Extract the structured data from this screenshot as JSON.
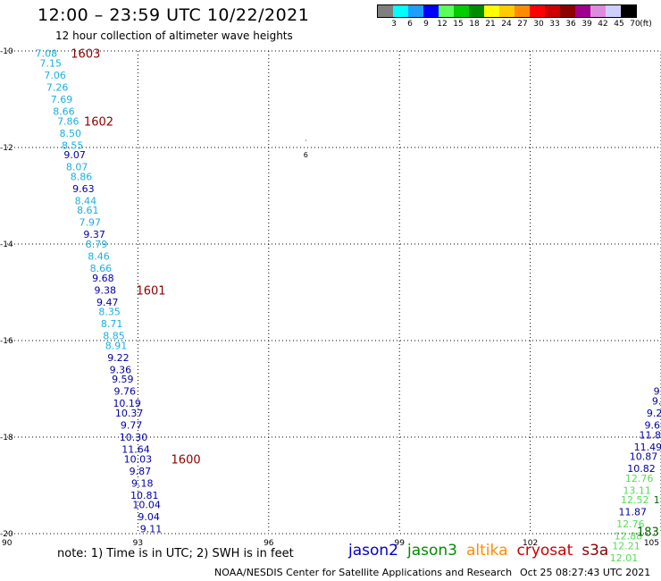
{
  "header": {
    "title": "12:00 – 23:59 UTC 10/22/2021",
    "subtitle": "12 hour collection of altimeter wave heights"
  },
  "color_scale": {
    "colors": [
      "#7f7f7f",
      "#00ffff",
      "#1e9fff",
      "#0000ff",
      "#5aff5a",
      "#00cc00",
      "#008c00",
      "#ffff00",
      "#ffcc00",
      "#ff8c00",
      "#ff0000",
      "#cc0000",
      "#8c0000",
      "#a0008c",
      "#dc8cdc",
      "#cfcfff",
      "#000000"
    ],
    "labels": [
      "3",
      "6",
      "9",
      "12",
      "15",
      "18",
      "21",
      "24",
      "27",
      "30",
      "33",
      "36",
      "39",
      "42",
      "45",
      "70",
      "(ft)"
    ]
  },
  "footer": {
    "note": "note:  1) Time is in UTC;  2) SWH is in feet",
    "credit_left": "NOAA/NESDIS Center for Satellite Applications and Research",
    "credit_right": "Oct 25 08:27:43 UTC 2021"
  },
  "legend": [
    {
      "name": "jason2",
      "color": "#0000cc"
    },
    {
      "name": "jason3",
      "color": "#008c00"
    },
    {
      "name": "altika",
      "color": "#ff8c00"
    },
    {
      "name": "cryosat",
      "color": "#cc0000"
    },
    {
      "name": "s3a",
      "color": "#8c0000"
    }
  ],
  "chart_data": {
    "type": "scatter",
    "xlim": [
      90,
      105
    ],
    "ylim": [
      -20,
      -10
    ],
    "xticks": [
      90,
      93,
      96,
      99,
      102,
      105
    ],
    "yticks": [
      -10,
      -12,
      -14,
      -16,
      -18,
      -20
    ],
    "grid": true,
    "colors": {
      "cyan": "#1ab0e0",
      "blue": "#0000aa",
      "lightgreen": "#55dd55",
      "green": "#006600",
      "dark": "#8c0000"
    },
    "points": [
      {
        "x": 90.9,
        "y": -10.05,
        "label": "7.08",
        "c": "cyan"
      },
      {
        "x": 91.0,
        "y": -10.25,
        "label": "7.15",
        "c": "cyan"
      },
      {
        "x": 91.1,
        "y": -10.5,
        "label": "7.06",
        "c": "cyan"
      },
      {
        "x": 91.15,
        "y": -10.75,
        "label": "7.26",
        "c": "cyan"
      },
      {
        "x": 91.25,
        "y": -11.0,
        "label": "7.69",
        "c": "cyan"
      },
      {
        "x": 91.3,
        "y": -11.25,
        "label": "8.66",
        "c": "cyan"
      },
      {
        "x": 91.4,
        "y": -11.45,
        "label": "7.86",
        "c": "cyan"
      },
      {
        "x": 91.45,
        "y": -11.7,
        "label": "8.50",
        "c": "cyan"
      },
      {
        "x": 91.5,
        "y": -11.95,
        "label": "8.55",
        "c": "cyan"
      },
      {
        "x": 91.55,
        "y": -12.15,
        "label": "9.07",
        "c": "blue"
      },
      {
        "x": 91.6,
        "y": -12.4,
        "label": "8.07",
        "c": "cyan"
      },
      {
        "x": 91.7,
        "y": -12.6,
        "label": "8.86",
        "c": "cyan"
      },
      {
        "x": 91.75,
        "y": -12.85,
        "label": "9.63",
        "c": "blue"
      },
      {
        "x": 91.8,
        "y": -13.1,
        "label": "8.44",
        "c": "cyan"
      },
      {
        "x": 91.85,
        "y": -13.3,
        "label": "8.61",
        "c": "cyan"
      },
      {
        "x": 91.9,
        "y": -13.55,
        "label": "7.97",
        "c": "cyan"
      },
      {
        "x": 92.0,
        "y": -13.8,
        "label": "9.37",
        "c": "blue"
      },
      {
        "x": 92.05,
        "y": -14.0,
        "label": "8.79",
        "c": "cyan"
      },
      {
        "x": 92.1,
        "y": -14.25,
        "label": "8.46",
        "c": "cyan"
      },
      {
        "x": 92.15,
        "y": -14.5,
        "label": "8.66",
        "c": "cyan"
      },
      {
        "x": 92.2,
        "y": -14.7,
        "label": "9.68",
        "c": "blue"
      },
      {
        "x": 92.25,
        "y": -14.95,
        "label": "9.38",
        "c": "blue"
      },
      {
        "x": 92.3,
        "y": -15.2,
        "label": "9.47",
        "c": "blue"
      },
      {
        "x": 92.35,
        "y": -15.4,
        "label": "8.35",
        "c": "cyan"
      },
      {
        "x": 92.4,
        "y": -15.65,
        "label": "8.71",
        "c": "cyan"
      },
      {
        "x": 92.45,
        "y": -15.9,
        "label": "8.85",
        "c": "cyan"
      },
      {
        "x": 92.5,
        "y": -16.1,
        "label": "8.91",
        "c": "cyan"
      },
      {
        "x": 92.55,
        "y": -16.35,
        "label": "9.22",
        "c": "blue"
      },
      {
        "x": 92.6,
        "y": -16.6,
        "label": "9.36",
        "c": "blue"
      },
      {
        "x": 92.65,
        "y": -16.8,
        "label": "9.59",
        "c": "blue"
      },
      {
        "x": 92.7,
        "y": -17.05,
        "label": "9.76",
        "c": "blue"
      },
      {
        "x": 92.75,
        "y": -17.3,
        "label": "10.19",
        "c": "blue"
      },
      {
        "x": 92.8,
        "y": -17.5,
        "label": "10.37",
        "c": "blue"
      },
      {
        "x": 92.85,
        "y": -17.75,
        "label": "9.77",
        "c": "blue"
      },
      {
        "x": 92.9,
        "y": -18.0,
        "label": "10.30",
        "c": "blue"
      },
      {
        "x": 92.95,
        "y": -18.25,
        "label": "11.64",
        "c": "blue"
      },
      {
        "x": 93.0,
        "y": -18.45,
        "label": "10.03",
        "c": "blue"
      },
      {
        "x": 93.05,
        "y": -18.7,
        "label": "9.87",
        "c": "blue"
      },
      {
        "x": 93.1,
        "y": -18.95,
        "label": "9.18",
        "c": "blue"
      },
      {
        "x": 93.15,
        "y": -19.2,
        "label": "10.81",
        "c": "blue"
      },
      {
        "x": 93.2,
        "y": -19.4,
        "label": "10.04",
        "c": "blue"
      },
      {
        "x": 93.25,
        "y": -19.65,
        "label": "9.04",
        "c": "blue"
      },
      {
        "x": 93.3,
        "y": -19.9,
        "label": "9.11",
        "c": "blue"
      },
      {
        "x": 104.9,
        "y": -17.05,
        "label": "9",
        "c": "blue"
      },
      {
        "x": 104.9,
        "y": -17.25,
        "label": "9.",
        "c": "blue"
      },
      {
        "x": 104.85,
        "y": -17.5,
        "label": "9.2",
        "c": "blue"
      },
      {
        "x": 104.8,
        "y": -17.75,
        "label": "9.6",
        "c": "blue"
      },
      {
        "x": 104.75,
        "y": -17.95,
        "label": "11.8",
        "c": "blue"
      },
      {
        "x": 104.7,
        "y": -18.2,
        "label": "11.49",
        "c": "blue"
      },
      {
        "x": 104.6,
        "y": -18.4,
        "label": "10.87",
        "c": "blue"
      },
      {
        "x": 104.55,
        "y": -18.65,
        "label": "10.82",
        "c": "blue"
      },
      {
        "x": 104.5,
        "y": -18.85,
        "label": "12.76",
        "c": "lightgreen"
      },
      {
        "x": 104.45,
        "y": -19.1,
        "label": "13.11",
        "c": "lightgreen"
      },
      {
        "x": 104.4,
        "y": -19.3,
        "label": "12.52",
        "c": "lightgreen"
      },
      {
        "x": 104.9,
        "y": -19.3,
        "label": "1",
        "c": "green"
      },
      {
        "x": 104.35,
        "y": -19.55,
        "label": "11.87",
        "c": "blue"
      },
      {
        "x": 104.3,
        "y": -19.8,
        "label": "12.76",
        "c": "lightgreen"
      },
      {
        "x": 104.25,
        "y": -20.05,
        "label": "12.88",
        "c": "lightgreen"
      },
      {
        "x": 104.2,
        "y": -20.25,
        "label": "12.21",
        "c": "lightgreen"
      },
      {
        "x": 104.15,
        "y": -20.5,
        "label": "12.01",
        "c": "lightgreen"
      }
    ],
    "time_labels": [
      {
        "x": 91.8,
        "y": -10.05,
        "label": "1603",
        "c": "dark"
      },
      {
        "x": 92.1,
        "y": -11.45,
        "label": "1602",
        "c": "dark"
      },
      {
        "x": 93.3,
        "y": -14.95,
        "label": "1601",
        "c": "dark"
      },
      {
        "x": 94.1,
        "y": -18.45,
        "label": "1600",
        "c": "dark"
      },
      {
        "x": 104.7,
        "y": -19.95,
        "label": "183",
        "c": "green"
      }
    ],
    "small_marks": [
      {
        "x": 96.85,
        "y": -11.85,
        "label": "·"
      },
      {
        "x": 96.85,
        "y": -12.15,
        "label": "6"
      }
    ]
  }
}
